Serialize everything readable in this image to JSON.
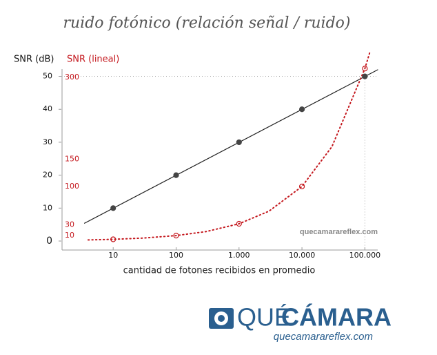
{
  "chart_data": {
    "type": "scatter",
    "title": "ruido fotónico (relación señal / ruido)",
    "xlabel": "cantidad de fotones recibidos en promedio",
    "ylabel": "SNR (dB)",
    "y2label": "SNR (lineal)",
    "xscale": "log",
    "xlim": [
      1.5,
      160000
    ],
    "xticks": [
      10,
      100,
      {
        "value": 1000,
        "label": "1.000"
      },
      {
        "value": 10000,
        "label": "10.000"
      },
      {
        "value": 100000,
        "label": "100.000"
      }
    ],
    "ylim": [
      0,
      58.5
    ],
    "yticks": [
      0,
      10,
      20,
      30,
      40,
      50
    ],
    "y2lim": [
      0,
      353
    ],
    "y2ticks": [
      10,
      30,
      100,
      150,
      300
    ],
    "y2color": "#c4161c",
    "guides": {
      "x": 100000,
      "y": 50
    },
    "series": [
      {
        "color": "#444444",
        "marker": "filled",
        "x": [
          10,
          100,
          1000,
          10000,
          100000
        ],
        "values": [
          10,
          20,
          30,
          40,
          50
        ]
      },
      {
        "color": "#c4161c",
        "marker": "open",
        "axis": "y2",
        "x": [
          10,
          100,
          1000,
          10000,
          100000
        ],
        "values": [
          3.16,
          10,
          31.6,
          100,
          316
        ]
      }
    ],
    "fits": [
      {
        "color": "#222222",
        "style": "solid",
        "x": [
          3.5,
          160000
        ],
        "values": [
          5.4,
          52
        ]
      },
      {
        "color": "#c4161c",
        "style": "dotted",
        "axis": "y2",
        "x": [
          4,
          10,
          30,
          100,
          300,
          1000,
          3000,
          10000,
          30000,
          100000,
          120000
        ],
        "values": [
          2,
          3.16,
          5.5,
          10,
          17.3,
          31.6,
          54.8,
          100,
          173,
          316,
          346
        ]
      }
    ],
    "watermark": "quecamarareflex.com"
  },
  "logo": {
    "text1": "QUÉ",
    "text2": "CÁMARA",
    "url": "quecamarareflex.com"
  }
}
